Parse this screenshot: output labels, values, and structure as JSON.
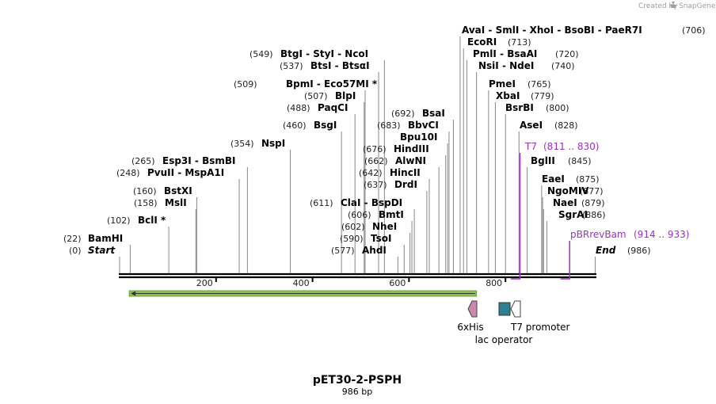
{
  "brand": {
    "created_by": "Created by",
    "name": "SnapGene"
  },
  "plasmid": {
    "name": "pET30-2-PSPH",
    "size_label": "986 bp"
  },
  "ruler": {
    "ticks": [
      200,
      400,
      600,
      800
    ]
  },
  "sites": [
    {
      "id": "start",
      "name": "Start",
      "pos": "(0)",
      "bp": 0,
      "italic": true
    },
    {
      "id": "bamhi",
      "name": "BamHI",
      "pos": "(22)",
      "bp": 22
    },
    {
      "id": "bcli",
      "name": "BclI *",
      "pos": "(102)",
      "bp": 102
    },
    {
      "id": "msli",
      "name": "MslI",
      "pos": "(158)",
      "bp": 158
    },
    {
      "id": "bstxi",
      "name": "BstXI",
      "pos": "(160)",
      "bp": 160
    },
    {
      "id": "pvuii",
      "name": "PvuII   - MspA1I",
      "pos": "(248)",
      "bp": 248
    },
    {
      "id": "esp3i",
      "name": "Esp3I   - BsmBI",
      "pos": "(265)",
      "bp": 265
    },
    {
      "id": "nspi",
      "name": "NspI",
      "pos": "(354)",
      "bp": 354
    },
    {
      "id": "bsgi",
      "name": "BsgI",
      "pos": "(460)",
      "bp": 460
    },
    {
      "id": "paqci",
      "name": "PaqCI",
      "pos": "(488)",
      "bp": 488
    },
    {
      "id": "blpi",
      "name": "BlpI",
      "pos": "(507)",
      "bp": 507
    },
    {
      "id": "bpmi",
      "name": "BpmI   - Eco57MI *",
      "pos": "(509)",
      "bp": 509
    },
    {
      "id": "btsi",
      "name": "BtsI   - BtsαI",
      "pos": "(537)",
      "bp": 537
    },
    {
      "id": "btgi",
      "name": "BtgI   - StyI   - NcoI",
      "pos": "(549)",
      "bp": 549
    },
    {
      "id": "ahdi",
      "name": "AhdI",
      "pos": "(577)",
      "bp": 577
    },
    {
      "id": "tsoi",
      "name": "TsoI",
      "pos": "(590)",
      "bp": 590
    },
    {
      "id": "nhei",
      "name": "NheI",
      "pos": "(602)",
      "bp": 602
    },
    {
      "id": "bmti",
      "name": "BmtI",
      "pos": "(606)",
      "bp": 606
    },
    {
      "id": "clai",
      "name": "ClaI   - BspDI",
      "pos": "(611)",
      "bp": 611
    },
    {
      "id": "drdi",
      "name": "DrdI",
      "pos": "(637)",
      "bp": 637
    },
    {
      "id": "hincii",
      "name": "HincII",
      "pos": "(642)",
      "bp": 642
    },
    {
      "id": "alwni",
      "name": "AlwNI",
      "pos": "(662)",
      "bp": 662
    },
    {
      "id": "hindiii",
      "name": "HindIII",
      "pos": "(676)",
      "bp": 676
    },
    {
      "id": "bpu10i",
      "name": "Bpu10I",
      "pos": "",
      "bp": 680
    },
    {
      "id": "bbvci",
      "name": "BbvCI",
      "pos": "(683)",
      "bp": 683
    },
    {
      "id": "bsai",
      "name": "BsaI",
      "pos": "(692)",
      "bp": 692
    },
    {
      "id": "avai",
      "name": "AvaI   - SmlI   - XhoI   - BsoBI   - PaeR7I",
      "pos": "(706)",
      "bp": 706
    },
    {
      "id": "ecori",
      "name": "EcoRI",
      "pos": "(713)",
      "bp": 713
    },
    {
      "id": "pmli",
      "name": "PmlI   - BsaAI",
      "pos": "(720)",
      "bp": 720
    },
    {
      "id": "nsii",
      "name": "NsiI   - NdeI",
      "pos": "(740)",
      "bp": 740
    },
    {
      "id": "pmei",
      "name": "PmeI",
      "pos": "(765)",
      "bp": 765
    },
    {
      "id": "xbai",
      "name": "XbaI",
      "pos": "(779)",
      "bp": 779
    },
    {
      "id": "bsrbi",
      "name": "BsrBI",
      "pos": "(800)",
      "bp": 800
    },
    {
      "id": "asei",
      "name": "AseI",
      "pos": "(828)",
      "bp": 828
    },
    {
      "id": "bglii",
      "name": "BglII",
      "pos": "(845)",
      "bp": 845
    },
    {
      "id": "eaei",
      "name": "EaeI",
      "pos": "(875)",
      "bp": 875
    },
    {
      "id": "ngomiv",
      "name": "NgoMIV",
      "pos": "(877)",
      "bp": 877
    },
    {
      "id": "naei",
      "name": "NaeI",
      "pos": "(879)",
      "bp": 879
    },
    {
      "id": "sgrai",
      "name": "SgrAI",
      "pos": "(886)",
      "bp": 886
    },
    {
      "id": "end",
      "name": "End",
      "pos": "(986)",
      "bp": 986,
      "italic": true
    }
  ],
  "primers": [
    {
      "id": "t7",
      "name": "T7",
      "range": "(811 .. 830)",
      "start": 811,
      "end": 830
    },
    {
      "id": "pbrrevbam",
      "name": "pBRrevBam",
      "range": "(914 .. 933)",
      "start": 914,
      "end": 933
    }
  ],
  "features": [
    {
      "id": "orf",
      "label": "",
      "type": "orf",
      "start": 20,
      "end": 740,
      "direction": "reverse",
      "color": "#8bc34a"
    },
    {
      "id": "6xhis",
      "label": "6xHis",
      "type": "tag",
      "start": 728,
      "end": 745,
      "direction": "reverse",
      "color": "#c98ab0"
    },
    {
      "id": "lac",
      "label": "lac operator",
      "type": "protein_bind",
      "start": 781,
      "end": 805,
      "direction": "none",
      "color": "#2f7f93"
    },
    {
      "id": "t7prom",
      "label": "T7 promoter",
      "type": "promoter",
      "start": 806,
      "end": 825,
      "direction": "reverse",
      "color": "#ffffff"
    }
  ],
  "colors": {
    "backbone": "#000000",
    "primer": "#9b30c8",
    "orf": "#8bc34a"
  }
}
